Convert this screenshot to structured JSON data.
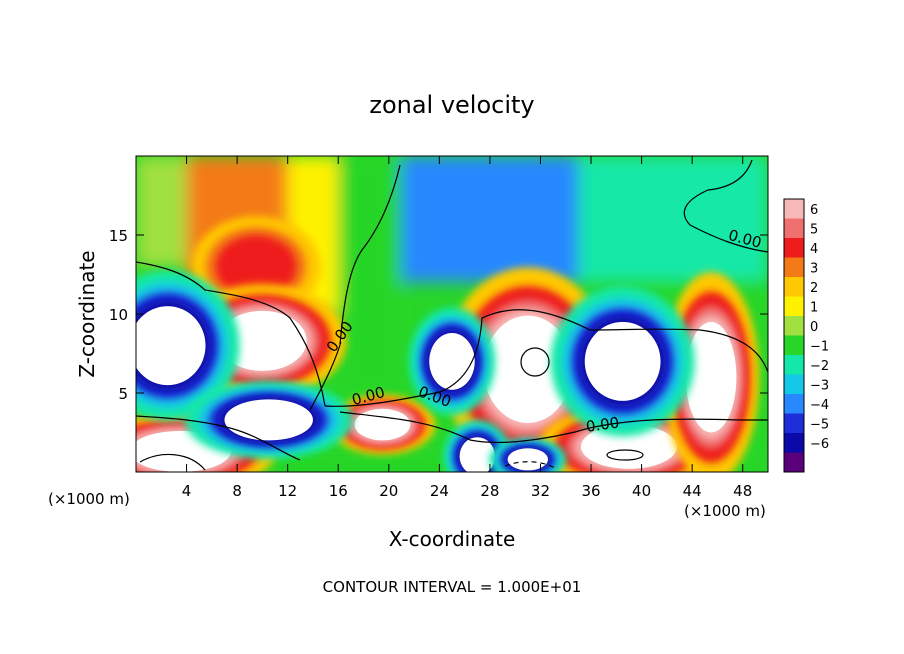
{
  "chart_data": {
    "type": "heatmap",
    "title": "zonal velocity",
    "xlabel": "X-coordinate",
    "ylabel": "Z-coordinate",
    "x_unit_label": "(×1000 m)",
    "x_unit_label_right": "(×1000 m)",
    "xlim": [
      0,
      50
    ],
    "ylim": [
      0,
      20
    ],
    "x_ticks": [
      "4",
      "8",
      "12",
      "16",
      "20",
      "24",
      "28",
      "32",
      "36",
      "40",
      "44",
      "48"
    ],
    "y_ticks": [
      "5",
      "10",
      "15"
    ],
    "colorbar": {
      "range": [
        -6,
        6
      ],
      "labels": [
        "6",
        "5",
        "4",
        "3",
        "2",
        "1",
        "0",
        "−1",
        "−2",
        "−3",
        "−4",
        "−5",
        "−6"
      ],
      "colors": [
        "#f7b8b8",
        "#f07070",
        "#ee1c1c",
        "#f47a18",
        "#ffc800",
        "#fff200",
        "#a0e040",
        "#28d628",
        "#14e8a8",
        "#14c8e8",
        "#2888ff",
        "#1e2ed8",
        "#0a0aa8",
        "#5a007a"
      ]
    },
    "contour_label": "0.00",
    "contour_interval_text": "CONTOUR INTERVAL = 1.000E+01",
    "field_cells": [
      {
        "x": [
          0,
          6
        ],
        "z": [
          13,
          20
        ],
        "value": 0.4
      },
      {
        "x": [
          4,
          12
        ],
        "z": [
          12,
          20
        ],
        "value": 2.8
      },
      {
        "x": [
          12,
          16
        ],
        "z": [
          10,
          20
        ],
        "value": 1.3
      },
      {
        "x": [
          16,
          21
        ],
        "z": [
          5,
          20
        ],
        "value": -0.4
      },
      {
        "x": [
          21,
          35
        ],
        "z": [
          12,
          20
        ],
        "value": -2.8
      },
      {
        "x": [
          35,
          50
        ],
        "z": [
          12,
          20
        ],
        "value": -1.2
      },
      {
        "x": [
          0,
          50
        ],
        "z": [
          0,
          1
        ],
        "value": 0.0
      }
    ],
    "features": [
      {
        "kind": "positive-cell",
        "cx": 9.5,
        "cz": 13,
        "rx": 3.2,
        "rz": 2.0,
        "peak": 4.2
      },
      {
        "kind": "saturated-positive",
        "cx": 10,
        "cz": 8.3,
        "rx": 3.5,
        "rz": 1.9
      },
      {
        "kind": "saturated-positive",
        "cx": 19.5,
        "cz": 3.0,
        "rx": 2.2,
        "rz": 1.0
      },
      {
        "kind": "saturated-positive",
        "cx": 31,
        "cz": 6.5,
        "rx": 3.5,
        "rz": 3.4
      },
      {
        "kind": "saturated-positive",
        "cx": 39,
        "cz": 1.6,
        "rx": 3.8,
        "rz": 1.4
      },
      {
        "kind": "saturated-positive",
        "cx": 45.5,
        "cz": 6.0,
        "rx": 2.0,
        "rz": 3.5
      },
      {
        "kind": "saturated-positive",
        "cx": 3.5,
        "cz": 1.3,
        "rx": 4.0,
        "rz": 1.3
      },
      {
        "kind": "saturated-negative",
        "cx": 2.5,
        "cz": 8.0,
        "rx": 3.0,
        "rz": 2.5
      },
      {
        "kind": "saturated-negative",
        "cx": 10.5,
        "cz": 3.3,
        "rx": 3.5,
        "rz": 1.3
      },
      {
        "kind": "saturated-negative",
        "cx": 25,
        "cz": 7.0,
        "rx": 1.8,
        "rz": 1.8
      },
      {
        "kind": "saturated-negative",
        "cx": 38.5,
        "cz": 7.0,
        "rx": 3.0,
        "rz": 2.5
      },
      {
        "kind": "saturated-negative",
        "cx": 27,
        "cz": 1.0,
        "rx": 1.4,
        "rz": 1.2
      },
      {
        "kind": "saturated-negative",
        "cx": 31,
        "cz": 0.8,
        "rx": 1.6,
        "rz": 0.7
      }
    ]
  }
}
